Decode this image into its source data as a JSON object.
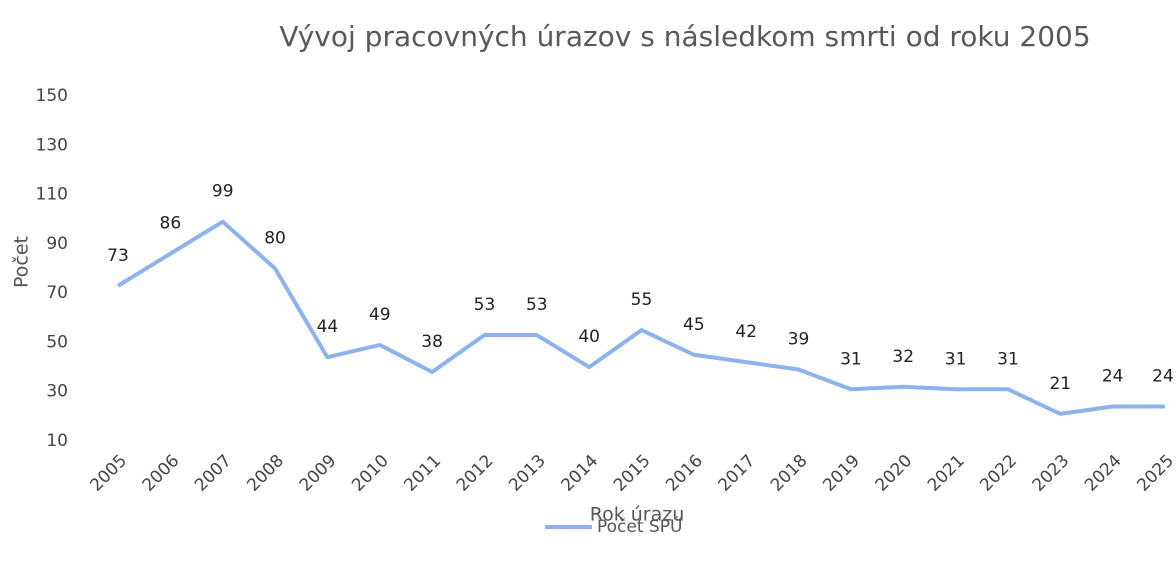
{
  "chart_data": {
    "type": "line",
    "title": "Vývoj pracovných úrazov s následkom smrti  od roku 2005",
    "x_label": "Rok úrazu",
    "y_label": "Počet",
    "categories": [
      "2005",
      "2006",
      "2007",
      "2008",
      "2009",
      "2010",
      "2011",
      "2012",
      "2013",
      "2014",
      "2015",
      "2016",
      "2017",
      "2018",
      "2019",
      "2020",
      "2021",
      "2022",
      "2023",
      "2024",
      "2025"
    ],
    "series": [
      {
        "name": "Počet SPÚ",
        "color": "#8cb3ee",
        "values": [
          73,
          86,
          99,
          80,
          44,
          49,
          38,
          53,
          53,
          40,
          55,
          45,
          42,
          39,
          31,
          32,
          31,
          31,
          21,
          24,
          24
        ]
      }
    ],
    "ylim": [
      10,
      150
    ],
    "yticks": [
      10,
      30,
      50,
      70,
      90,
      110,
      130,
      150
    ],
    "grid": false,
    "legend": "bottom",
    "data_labels": true
  }
}
